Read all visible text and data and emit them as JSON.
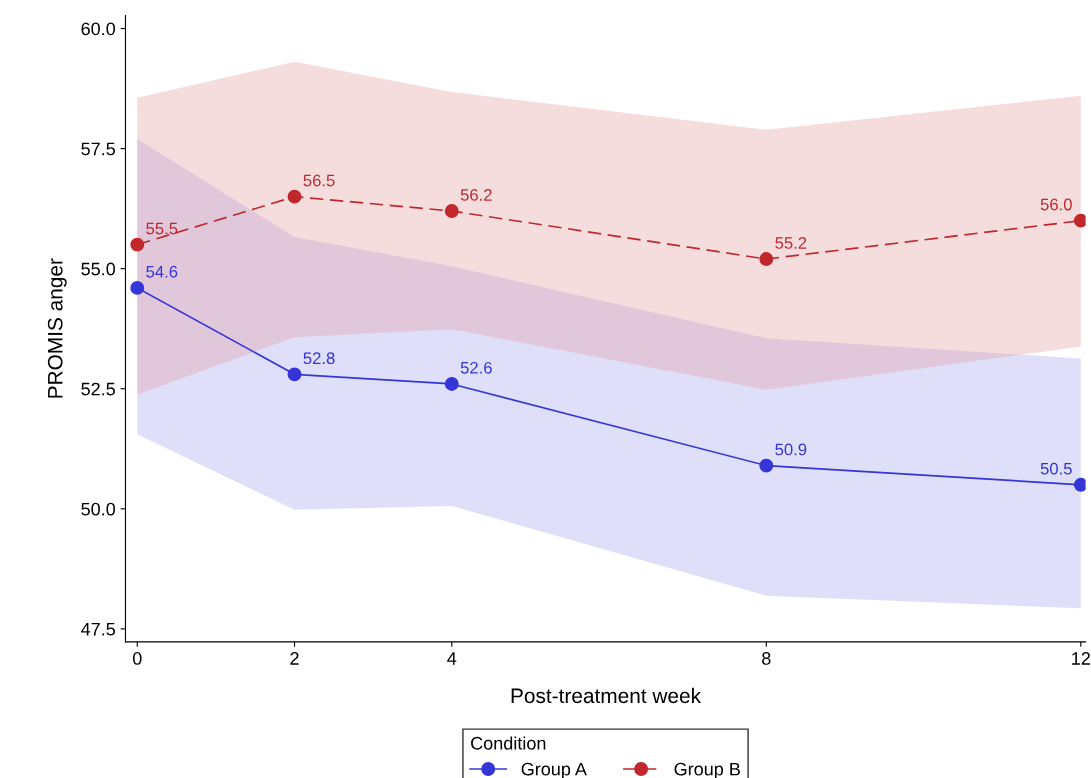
{
  "chart_data": {
    "type": "line",
    "xlabel": "Post-treatment week",
    "ylabel": "PROMIS anger",
    "x": [
      0,
      2,
      4,
      8,
      12
    ],
    "series": [
      {
        "name": "Group A",
        "color": "#3535d8",
        "values": [
          54.6,
          52.8,
          52.6,
          50.9,
          50.5
        ],
        "value_labels": [
          "54.6",
          "52.8",
          "52.6",
          "50.9",
          "50.5"
        ],
        "lower": [
          51.55,
          49.98,
          50.06,
          48.19,
          47.93
        ],
        "upper": [
          57.7,
          55.66,
          55.05,
          53.55,
          53.13
        ],
        "line_style": "solid"
      },
      {
        "name": "Group B",
        "color": "#c0282d",
        "values": [
          55.5,
          56.5,
          56.2,
          55.2,
          56.0
        ],
        "value_labels": [
          "55.5",
          "56.5",
          "56.2",
          "55.2",
          "56.0"
        ],
        "lower": [
          52.38,
          53.57,
          53.74,
          52.48,
          53.38
        ],
        "upper": [
          58.56,
          59.31,
          58.68,
          57.89,
          58.6
        ],
        "line_style": "dashed"
      }
    ],
    "xlim": [
      -0.15,
      12.06
    ],
    "xticks": [
      0,
      2,
      4,
      8,
      12
    ],
    "ylim": [
      47.23,
      60.27
    ],
    "yticks": [
      {
        "value": 47.5,
        "label": "47.5"
      },
      {
        "value": 50,
        "label": "50.0"
      },
      {
        "value": 52.5,
        "label": "52.5"
      },
      {
        "value": 55,
        "label": "55.0"
      },
      {
        "value": 57.5,
        "label": "57.5"
      },
      {
        "value": 60,
        "label": "60.0"
      }
    ],
    "marker": "circle",
    "data_labels": true,
    "legend": "bottom",
    "legend_title": "Condition",
    "grid": false
  }
}
